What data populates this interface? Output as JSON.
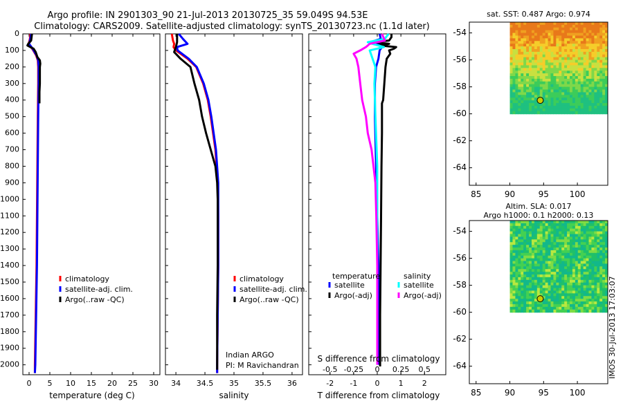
{
  "header": {
    "title_line1": "Argo profile: IN 2901303_90 21-Jul-2013 20130725_35 59.049S 94.53E",
    "title_line2": "Climatology: CARS2009. Satellite-adjusted climatology: synTS_20130723.nc (1.1d later)"
  },
  "colors": {
    "climatology": "#ff0000",
    "satellite": "#0000ff",
    "argo": "#000000",
    "s_satellite": "#00ffff",
    "s_argo": "#ff00ff"
  },
  "depth_axis": {
    "ticks": [
      0,
      100,
      200,
      300,
      400,
      500,
      600,
      700,
      800,
      900,
      1000,
      1100,
      1200,
      1300,
      1400,
      1500,
      1600,
      1700,
      1800,
      1900,
      2000
    ],
    "range": [
      0,
      2060
    ]
  },
  "legend_labels": {
    "climatology": "climatology",
    "satellite_adj": "satellite-adj. clim.",
    "argo": "Argo(..raw -QC)"
  },
  "chart_data": [
    {
      "type": "line",
      "name": "temperature-profile",
      "xlabel": "temperature (deg C)",
      "xlim": [
        -1.5,
        31.5
      ],
      "xticks": [
        0,
        5,
        10,
        15,
        20,
        25,
        30
      ],
      "series": [
        {
          "name": "climatology",
          "depth": [
            0,
            30,
            60,
            80,
            100,
            130,
            160,
            200,
            300,
            500,
            800,
            1100,
            1400,
            1700,
            2000,
            2050
          ],
          "values": [
            0.3,
            0.2,
            -0.1,
            0.5,
            1.0,
            1.7,
            2.1,
            2.2,
            2.2,
            2.1,
            2.0,
            1.9,
            1.8,
            1.6,
            1.4,
            1.4
          ]
        },
        {
          "name": "satellite-adj. clim.",
          "depth": [
            0,
            30,
            60,
            80,
            100,
            130,
            160,
            200,
            300,
            500,
            800,
            1100,
            1400,
            1700,
            2000,
            2050
          ],
          "values": [
            0.5,
            0.3,
            0.0,
            0.6,
            1.1,
            1.8,
            2.2,
            2.3,
            2.3,
            2.2,
            2.1,
            2.0,
            1.9,
            1.7,
            1.5,
            1.4
          ]
        },
        {
          "name": "Argo(..raw -QC)",
          "depth": [
            0,
            20,
            40,
            60,
            70,
            80,
            90,
            110,
            140,
            160,
            180,
            200,
            250,
            300,
            350,
            400,
            420
          ],
          "values": [
            0.7,
            0.6,
            0.5,
            -0.2,
            -0.4,
            0.3,
            1.1,
            1.6,
            2.0,
            2.6,
            2.7,
            2.6,
            2.6,
            2.6,
            2.5,
            2.5,
            2.5
          ]
        }
      ]
    },
    {
      "type": "line",
      "name": "salinity-profile",
      "xlabel": "salinity",
      "xlim": [
        33.82,
        36.18
      ],
      "xticks": [
        34,
        34.5,
        35,
        35.5,
        36
      ],
      "series": [
        {
          "name": "climatology",
          "depth": [
            0,
            40,
            60,
            80,
            100,
            150,
            200,
            300,
            400,
            500,
            700,
            900,
            1100,
            1400,
            1700,
            2000,
            2050
          ],
          "values": [
            33.93,
            33.95,
            33.97,
            33.96,
            34.0,
            34.2,
            34.35,
            34.47,
            34.55,
            34.6,
            34.68,
            34.72,
            34.73,
            34.73,
            34.72,
            34.71,
            34.71
          ]
        },
        {
          "name": "satellite-adj. clim.",
          "depth": [
            0,
            30,
            60,
            80,
            100,
            150,
            200,
            300,
            400,
            500,
            700,
            900,
            1100,
            1400,
            1700,
            2000,
            2050
          ],
          "values": [
            34.05,
            34.12,
            34.2,
            34.02,
            34.03,
            34.22,
            34.36,
            34.48,
            34.56,
            34.61,
            34.69,
            34.73,
            34.73,
            34.73,
            34.72,
            34.71,
            34.71
          ]
        },
        {
          "name": "Argo(..raw -QC)",
          "depth": [
            0,
            50,
            80,
            110,
            150,
            200,
            300,
            400,
            500,
            600,
            700,
            800,
            900,
            1000,
            1100,
            1200,
            1400,
            1700,
            2000,
            2030
          ],
          "values": [
            34.02,
            34.02,
            34.0,
            33.97,
            34.08,
            34.25,
            34.32,
            34.4,
            34.45,
            34.52,
            34.6,
            34.68,
            34.71,
            34.72,
            34.72,
            34.72,
            34.72,
            34.71,
            34.71,
            34.71
          ]
        }
      ],
      "annotation_lines": [
        "Indian ARGO",
        "PI: M Ravichandran"
      ]
    },
    {
      "type": "line",
      "name": "difference-profile",
      "xlabel": "T difference from climatology",
      "xlim": [
        -2.9,
        2.9
      ],
      "xticks": [
        -2,
        -1,
        0,
        1,
        2
      ],
      "top_xlabel": "S difference from climatology",
      "top_xticks": [
        {
          "value": -0.5,
          "label": "-0.5"
        },
        {
          "value": -0.25,
          "label": "-0.25"
        },
        {
          "value": 0,
          "label": "0"
        },
        {
          "value": 0.25,
          "label": "0.25"
        },
        {
          "value": 0.5,
          "label": "0.5"
        }
      ],
      "legend": {
        "temperature_title": "temperature",
        "salinity_title": "salinity",
        "satellite": "satellite",
        "argo": "Argo(-adj)"
      },
      "series": [
        {
          "name": "temperature satellite",
          "depth": [
            0,
            30,
            50,
            60,
            80,
            100,
            150,
            200,
            300,
            500,
            800,
            1100,
            1400,
            1700,
            2000
          ],
          "values": [
            0.1,
            0.15,
            -0.3,
            0.1,
            0.2,
            0.1,
            0.05,
            -0.05,
            -0.1,
            -0.1,
            -0.05,
            0.0,
            0.05,
            0.05,
            0.08
          ]
        },
        {
          "name": "temperature Argo(-adj)",
          "depth": [
            0,
            20,
            40,
            50,
            60,
            70,
            80,
            90,
            100,
            120,
            150,
            200,
            300,
            400,
            420,
            600,
            800,
            1100,
            1400,
            1700,
            2000,
            2010
          ],
          "values": [
            0.6,
            0.6,
            0.5,
            -0.2,
            0.5,
            0.1,
            0.8,
            0.7,
            0.5,
            0.55,
            0.4,
            0.35,
            0.3,
            0.25,
            0.2,
            0.2,
            0.18,
            0.16,
            0.14,
            0.12,
            0.12,
            0.12
          ]
        },
        {
          "name": "salinity satellite",
          "depth": [
            0,
            30,
            50,
            60,
            80,
            100,
            150,
            200,
            300,
            500,
            800,
            1100,
            1400,
            1700,
            2000
          ],
          "values": [
            0.12,
            0.08,
            -0.1,
            -0.05,
            0.07,
            -0.08,
            -0.05,
            -0.02,
            -0.03,
            -0.02,
            0.0,
            0.0,
            0.0,
            0.0,
            0.0
          ]
        },
        {
          "name": "salinity Argo(-adj)",
          "depth": [
            0,
            40,
            60,
            80,
            100,
            120,
            150,
            200,
            300,
            400,
            500,
            600,
            700,
            900,
            1100,
            1400,
            1700,
            2000
          ],
          "values": [
            0.05,
            0.08,
            -0.08,
            -0.12,
            -0.18,
            -0.25,
            -0.22,
            -0.2,
            -0.18,
            -0.16,
            -0.12,
            -0.1,
            -0.06,
            -0.02,
            -0.01,
            0.0,
            0.0,
            0.0
          ]
        }
      ]
    },
    {
      "type": "heatmap",
      "name": "sst-map",
      "title": "sat. SST: 0.487 Argo: 0.974",
      "xlim": [
        84,
        104.5
      ],
      "ylim": [
        -65.3,
        -53.2
      ],
      "xticks": [
        85,
        90,
        95,
        100
      ],
      "yticks": [
        -54,
        -56,
        -58,
        -60,
        -62,
        -64
      ],
      "data_extent": {
        "lon": [
          90,
          104.5
        ],
        "lat": [
          -60,
          -53.2
        ]
      },
      "argo_point": {
        "lon": 94.5,
        "lat": -59
      }
    },
    {
      "type": "heatmap",
      "name": "sla-map",
      "title_lines": [
        "Altim. SLA: 0.017",
        "Argo h1000: 0.1 h2000: 0.13"
      ],
      "xlim": [
        84,
        104.5
      ],
      "ylim": [
        -65.3,
        -53.2
      ],
      "xticks": [
        85,
        90,
        95,
        100
      ],
      "yticks": [
        -54,
        -56,
        -58,
        -60,
        -62,
        -64
      ],
      "data_extent": {
        "lon": [
          90,
          104.5
        ],
        "lat": [
          -60,
          -53.2
        ]
      },
      "argo_point": {
        "lon": 94.5,
        "lat": -59
      }
    }
  ],
  "footer": {
    "stamp": "IMOS 30-Jul-2013 17:03:07"
  }
}
